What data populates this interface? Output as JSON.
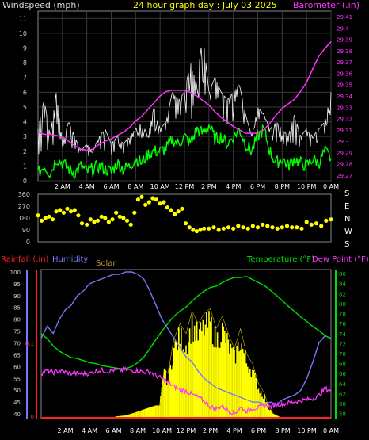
{
  "header": {
    "left_title": "Windspeed (mph)",
    "center_title": "24 hour graph day : July 03 2025",
    "right_title": "Barometer (.in)"
  },
  "colors": {
    "wind_label": "#d8d8d8",
    "center_title": "#ffff00",
    "barometer": "#ff33ff",
    "wind_gust": "#ffffff",
    "wind_avg": "#00ff00",
    "direction": "#ffff00",
    "rain": "#ff2222",
    "humidity": "#7777ff",
    "solar": "#ffff00",
    "temperature": "#00dd00",
    "dewpoint": "#ff33ff",
    "solar_label": "#b09030"
  },
  "chart_data": [
    {
      "type": "line",
      "title": "",
      "left_axis": {
        "label": "Windspeed (mph)",
        "range": [
          0,
          11.5
        ],
        "ticks": [
          "0",
          "1",
          "2",
          "3",
          "4",
          "5",
          "6",
          "7",
          "8",
          "9",
          "10",
          "11"
        ]
      },
      "right_axis": {
        "label": "Barometer (.in)",
        "range": [
          29.265,
          29.415
        ],
        "ticks": [
          "29.27",
          "29.28",
          "29.29",
          "29.3",
          "29.31",
          "29.32",
          "29.33",
          "29.34",
          "29.35",
          "29.36",
          "29.37",
          "29.38",
          "29.39",
          "29.4",
          "29.41"
        ]
      },
      "x_ticks": [
        "2 AM",
        "4 AM",
        "6 AM",
        "8 AM",
        "10 AM",
        "12 PM",
        "2 PM",
        "4 PM",
        "6 PM",
        "8 PM",
        "10 PM",
        "0 AM"
      ],
      "x_range_hours": [
        0,
        24
      ],
      "grid": true,
      "series": [
        {
          "name": "Barometer",
          "axis": "right",
          "x": [
            0,
            0.5,
            1,
            1.5,
            2,
            2.5,
            3,
            3.5,
            4,
            4.5,
            5,
            5.5,
            6,
            6.5,
            7,
            7.5,
            8,
            8.5,
            9,
            9.5,
            10,
            10.5,
            11,
            11.5,
            12,
            12.5,
            13,
            13.5,
            14,
            14.5,
            15,
            15.5,
            16,
            16.5,
            17,
            17.5,
            18,
            18.5,
            19,
            19.5,
            20,
            20.5,
            21,
            21.5,
            22,
            22.5,
            23,
            23.5,
            24
          ],
          "y": [
            29.308,
            29.306,
            29.306,
            29.305,
            29.304,
            29.3,
            29.296,
            29.293,
            29.292,
            29.293,
            29.297,
            29.3,
            29.302,
            29.305,
            29.308,
            29.312,
            29.318,
            29.322,
            29.328,
            29.334,
            29.34,
            29.344,
            29.345,
            29.345,
            29.345,
            29.343,
            29.34,
            29.336,
            29.332,
            29.326,
            29.321,
            29.317,
            29.313,
            29.31,
            29.307,
            29.307,
            29.307,
            29.31,
            29.316,
            29.323,
            29.329,
            29.333,
            29.337,
            29.344,
            29.352,
            29.364,
            29.375,
            29.382,
            29.388
          ]
        },
        {
          "name": "Wind gust",
          "axis": "left",
          "x": [
            0,
            0.5,
            1,
            1.5,
            2,
            2.5,
            3,
            3.5,
            4,
            4.5,
            5,
            5.5,
            6,
            6.5,
            7,
            7.5,
            8,
            8.5,
            9,
            9.5,
            10,
            10.5,
            11,
            11.5,
            12,
            12.5,
            13,
            13.5,
            14,
            14.5,
            15,
            15.5,
            16,
            16.5,
            17,
            17.5,
            18,
            18.5,
            19,
            19.5,
            20,
            20.5,
            21,
            21.5,
            22,
            22.5,
            23,
            23.5,
            24
          ],
          "y": [
            3.5,
            5.5,
            3,
            6,
            2.5,
            4,
            3,
            2,
            2.5,
            2,
            3,
            3.5,
            2.5,
            3,
            2.5,
            3,
            3.5,
            4,
            3,
            5,
            3.5,
            4,
            6,
            5.5,
            6,
            8,
            6.5,
            10,
            6,
            7,
            6,
            5.5,
            6,
            6.5,
            4.5,
            3,
            5,
            4.5,
            3.5,
            4,
            3.5,
            3,
            4.5,
            3,
            3.5,
            3,
            3.5,
            4,
            6
          ]
        },
        {
          "name": "Wind average",
          "axis": "left",
          "x": [
            0,
            0.5,
            1,
            1.5,
            2,
            2.5,
            3,
            3.5,
            4,
            4.5,
            5,
            5.5,
            6,
            6.5,
            7,
            7.5,
            8,
            8.5,
            9,
            9.5,
            10,
            10.5,
            11,
            11.5,
            12,
            12.5,
            13,
            13.5,
            14,
            14.5,
            15,
            15.5,
            16,
            16.5,
            17,
            17.5,
            18,
            18.5,
            19,
            19.5,
            20,
            20.5,
            21,
            21.5,
            22,
            22.5,
            23,
            23.5,
            24
          ],
          "y": [
            0.5,
            1,
            0.5,
            1.5,
            1.2,
            0.8,
            0.5,
            1,
            0.6,
            0.8,
            1,
            0.8,
            0.6,
            1.2,
            0.8,
            1,
            1.5,
            1.2,
            1.8,
            2,
            2,
            2.2,
            2.8,
            2.5,
            3,
            2.5,
            3.5,
            3.2,
            3.8,
            2.8,
            3,
            2.5,
            3,
            3.5,
            2.5,
            2,
            3,
            3.5,
            2,
            1.2,
            1.5,
            1,
            1.5,
            1.2,
            1,
            1.5,
            1.2,
            2,
            1.5
          ]
        }
      ]
    },
    {
      "type": "scatter",
      "title": "",
      "left_axis": {
        "range": [
          0,
          360
        ],
        "ticks": [
          "0",
          "90",
          "180",
          "270",
          "360"
        ]
      },
      "right_labels": [
        "S",
        "E",
        "N",
        "W",
        "S"
      ],
      "x_range_hours": [
        0,
        24
      ],
      "series": [
        {
          "name": "Wind direction",
          "x": [
            0,
            0.3,
            0.6,
            0.9,
            1.2,
            1.5,
            1.8,
            2.1,
            2.4,
            2.7,
            3.0,
            3.3,
            3.6,
            4.0,
            4.3,
            4.6,
            4.9,
            5.2,
            5.5,
            5.8,
            6.1,
            6.4,
            6.7,
            7.0,
            7.3,
            7.6,
            7.9,
            8.2,
            8.5,
            8.8,
            9.1,
            9.4,
            9.7,
            10.0,
            10.3,
            10.6,
            10.9,
            11.2,
            11.5,
            11.8,
            12.1,
            12.4,
            12.7,
            13.0,
            13.3,
            13.6,
            14.0,
            14.4,
            14.8,
            15.2,
            15.6,
            16.0,
            16.4,
            16.8,
            17.2,
            17.6,
            18.0,
            18.4,
            18.8,
            19.2,
            19.6,
            20.0,
            20.4,
            20.8,
            21.2,
            21.6,
            22.0,
            22.4,
            22.8,
            23.2,
            23.6,
            24.0
          ],
          "y": [
            200,
            160,
            180,
            190,
            170,
            230,
            240,
            220,
            250,
            230,
            240,
            200,
            140,
            130,
            170,
            150,
            160,
            190,
            180,
            150,
            170,
            220,
            190,
            180,
            160,
            130,
            220,
            320,
            340,
            280,
            300,
            330,
            320,
            290,
            300,
            260,
            240,
            210,
            230,
            250,
            140,
            110,
            90,
            80,
            90,
            100,
            100,
            110,
            90,
            100,
            110,
            100,
            120,
            110,
            100,
            120,
            110,
            130,
            120,
            110,
            100,
            110,
            120,
            110,
            110,
            100,
            150,
            130,
            140,
            120,
            160,
            170
          ]
        }
      ]
    },
    {
      "type": "line",
      "title": "",
      "left_axis": {
        "range": [
          38,
          101
        ],
        "ticks": [
          "40",
          "45",
          "50",
          "55",
          "60",
          "65",
          "70",
          "75",
          "80",
          "85",
          "90",
          "95",
          "100"
        ]
      },
      "rain_axis": {
        "ticks": [
          "0",
          "0.1"
        ]
      },
      "right_axis": {
        "range": [
          57,
          86.8
        ],
        "ticks": [
          "58",
          "60",
          "62",
          "64",
          "66",
          "68",
          "70",
          "72",
          "74",
          "76",
          "78",
          "80",
          "82",
          "84",
          "86"
        ]
      },
      "legend": [
        "Rainfall (.in)",
        "Humidity",
        "Solar",
        "Temperature (°F)",
        "Dew Point (°F)"
      ],
      "x_ticks": [
        "2 AM",
        "4 AM",
        "6 AM",
        "8 AM",
        "10 AM",
        "12 PM",
        "2 PM",
        "4 PM",
        "6 PM",
        "8 PM",
        "10 PM",
        "0 AM"
      ],
      "x_range_hours": [
        0,
        24
      ],
      "series": [
        {
          "name": "Humidity",
          "axis": "left",
          "x": [
            0,
            0.5,
            1,
            1.5,
            2,
            2.5,
            3,
            3.5,
            4,
            4.5,
            5,
            5.5,
            6,
            6.5,
            7,
            7.5,
            8,
            8.5,
            9,
            9.5,
            10,
            10.5,
            11,
            11.5,
            12,
            12.5,
            13,
            13.5,
            14,
            14.5,
            15,
            15.5,
            16,
            16.5,
            17,
            17.5,
            18,
            18.5,
            19,
            19.5,
            20,
            20.5,
            21,
            21.5,
            22,
            22.5,
            23,
            23.5,
            24
          ],
          "y": [
            72,
            77,
            74,
            80,
            84,
            86,
            90,
            92,
            95,
            96,
            97,
            98,
            99,
            99,
            100,
            100,
            99,
            97,
            92,
            86,
            80,
            76,
            72,
            68,
            64,
            62,
            58,
            55,
            53,
            51,
            50,
            49,
            48,
            47,
            46,
            45,
            45,
            44,
            45,
            44,
            46,
            47,
            48,
            50,
            55,
            62,
            70,
            73,
            72
          ]
        },
        {
          "name": "Temperature",
          "axis": "right",
          "x": [
            0,
            0.5,
            1,
            1.5,
            2,
            2.5,
            3,
            3.5,
            4,
            4.5,
            5,
            5.5,
            6,
            6.5,
            7,
            7.5,
            8,
            8.5,
            9,
            9.5,
            10,
            10.5,
            11,
            11.5,
            12,
            12.5,
            13,
            13.5,
            14,
            14.5,
            15,
            15.5,
            16,
            16.5,
            17,
            17.5,
            18,
            18.5,
            19,
            19.5,
            20,
            20.5,
            21,
            21.5,
            22,
            22.5,
            23,
            23.5,
            24
          ],
          "y": [
            74,
            73,
            71.5,
            70.5,
            69.8,
            69.2,
            69,
            68.6,
            68.2,
            68,
            67.6,
            67.4,
            67.2,
            67,
            67,
            67.4,
            68.2,
            69.3,
            71,
            72.8,
            74.5,
            76,
            77.5,
            78.5,
            79.3,
            80.5,
            81.6,
            82.5,
            83.2,
            83.5,
            84.2,
            84.8,
            85.2,
            85.2,
            85.4,
            84.8,
            84.2,
            83.6,
            82.6,
            81.6,
            80.5,
            79.4,
            78.4,
            77.3,
            76.4,
            75.4,
            74.6,
            73.6,
            73
          ]
        },
        {
          "name": "Dew point",
          "axis": "right",
          "x": [
            0,
            0.5,
            1,
            1.5,
            2,
            2.5,
            3,
            3.5,
            4,
            4.5,
            5,
            5.5,
            6,
            6.5,
            7,
            7.5,
            8,
            8.5,
            9,
            9.5,
            10,
            10.5,
            11,
            11.5,
            12,
            12.5,
            13,
            13.5,
            14,
            14.5,
            15,
            15.5,
            16,
            16.5,
            17,
            17.5,
            18,
            18.5,
            19,
            19.5,
            20,
            20.5,
            21,
            21.5,
            22,
            22.5,
            23,
            23.5,
            24
          ],
          "y": [
            66,
            66.6,
            66.2,
            66.6,
            66.3,
            66,
            66,
            66,
            66,
            66.5,
            66.7,
            66.4,
            66.7,
            66.6,
            66.8,
            66.6,
            66.6,
            66.3,
            66.4,
            65.6,
            65,
            64.2,
            63.4,
            62.8,
            62.5,
            61.8,
            61.3,
            60.5,
            59.4,
            59,
            59.5,
            58.6,
            58,
            59.2,
            58.5,
            59,
            59.2,
            59.6,
            59.4,
            59.8,
            59.8,
            60.2,
            60.4,
            60.6,
            60.8,
            61,
            61.6,
            63,
            62.5
          ]
        },
        {
          "name": "Solar",
          "axis": "right",
          "x": [
            0,
            5.8,
            6.2,
            7,
            7.8,
            8.5,
            9,
            9.5,
            9.8,
            10.2,
            10.5,
            11,
            11.5,
            12,
            12.5,
            13,
            13.5,
            14,
            14.5,
            15,
            15.5,
            16,
            16.5,
            17,
            17.5,
            18,
            18.5,
            18.8,
            19.2,
            20,
            24
          ],
          "y": [
            57,
            57,
            57.4,
            57.6,
            58.2,
            58.8,
            59.2,
            59.6,
            59.6,
            67,
            66,
            73,
            76,
            74,
            78.5,
            76,
            78,
            79,
            75,
            77.5,
            74,
            71,
            75,
            70,
            68,
            64,
            62,
            59.5,
            58,
            57,
            57
          ]
        },
        {
          "name": "Rainfall",
          "axis": "rain",
          "x": [
            0,
            24
          ],
          "y": [
            0,
            0
          ]
        }
      ]
    }
  ]
}
